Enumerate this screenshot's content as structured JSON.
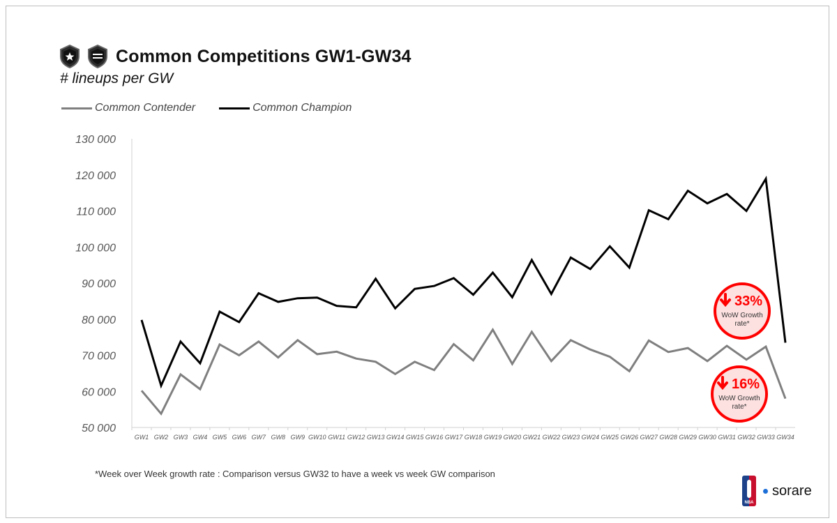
{
  "title": "Common Competitions GW1-GW34",
  "subtitle": "# lineups per GW",
  "badges": [
    "star-shield-icon",
    "mvp-shield-icon"
  ],
  "footnote": "*Week over Week growth rate : Comparison versus GW32 to have a week vs week GW comparison",
  "brand": {
    "name": "sorare",
    "logo_text": "NBA",
    "dot_color": "#1d6fd8"
  },
  "chart_data": {
    "type": "line",
    "title": "Common Competitions GW1-GW34",
    "subtitle": "# lineups per GW",
    "x": [
      "GW1",
      "GW2",
      "GW3",
      "GW4",
      "GW5",
      "GW6",
      "GW7",
      "GW8",
      "GW9",
      "GW10",
      "GW11",
      "GW12",
      "GW13",
      "GW14",
      "GW15",
      "GW16",
      "GW17",
      "GW18",
      "GW19",
      "GW20",
      "GW21",
      "GW22",
      "GW23",
      "GW24",
      "GW25",
      "GW26",
      "GW27",
      "GW28",
      "GW29",
      "GW30",
      "GW31",
      "GW32",
      "GW33",
      "GW34"
    ],
    "ylim": [
      50000,
      130000
    ],
    "yticks": [
      50000,
      60000,
      70000,
      80000,
      90000,
      100000,
      110000,
      120000,
      130000
    ],
    "ytick_labels": [
      "50 000",
      "60 000",
      "70 000",
      "80 000",
      "90 000",
      "100 000",
      "110 000",
      "120 000",
      "130 000"
    ],
    "grid": true,
    "legend": "top-left",
    "series": [
      {
        "name": "Common Contender",
        "color": "#7f7f7f",
        "values": [
          60200,
          53800,
          64700,
          60600,
          73000,
          70000,
          73800,
          69400,
          74200,
          70300,
          71000,
          69100,
          68200,
          64800,
          68200,
          65900,
          73100,
          68600,
          77100,
          67600,
          76500,
          68400,
          74200,
          71600,
          69600,
          65600,
          74100,
          70900,
          72000,
          68400,
          72600,
          68800,
          72400,
          58000
        ]
      },
      {
        "name": "Common Champion",
        "color": "#000000",
        "values": [
          79800,
          61600,
          73800,
          67800,
          82100,
          79200,
          87200,
          84800,
          85800,
          86000,
          83700,
          83300,
          91200,
          83000,
          88400,
          89200,
          91400,
          86800,
          92900,
          86100,
          96400,
          87000,
          97100,
          93900,
          100200,
          94300,
          110200,
          107700,
          115600,
          112100,
          114700,
          110000,
          118900,
          73500
        ]
      }
    ],
    "annotations": [
      {
        "value": "33%",
        "label": "WoW Growth rate*",
        "direction": "down",
        "series": "Common Champion",
        "color": "#ff0000"
      },
      {
        "value": "16%",
        "label": "WoW Growth rate*",
        "direction": "down",
        "series": "Common Contender",
        "color": "#ff0000"
      }
    ]
  }
}
